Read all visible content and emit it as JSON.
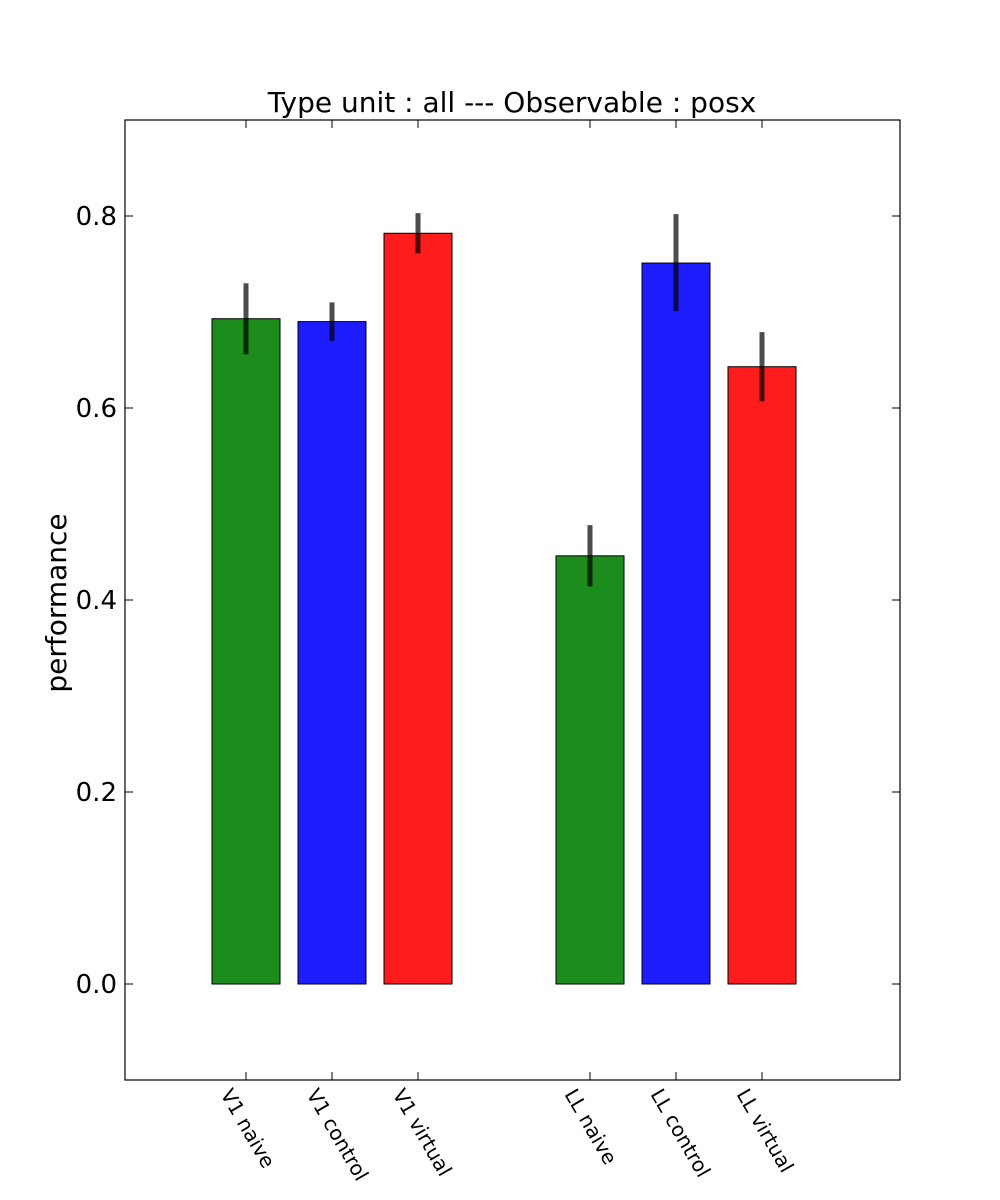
{
  "chart_data": {
    "type": "bar",
    "title": "Type unit : all --- Observable : posx",
    "xlabel": "",
    "ylabel": "performance",
    "ylim": [
      -0.1,
      0.9
    ],
    "yticks": [
      0.0,
      0.2,
      0.4,
      0.6,
      0.8
    ],
    "ytick_labels": [
      "0.0",
      "0.2",
      "0.4",
      "0.6",
      "0.8"
    ],
    "grid": false,
    "categories": [
      "V1 naive",
      "V1 control",
      "V1 virtual",
      "LL naive",
      "LL control",
      "LL virtual"
    ],
    "values": [
      0.693,
      0.69,
      0.782,
      0.446,
      0.751,
      0.643
    ],
    "error_low": [
      0.656,
      0.67,
      0.761,
      0.414,
      0.701,
      0.607
    ],
    "error_high": [
      0.73,
      0.71,
      0.803,
      0.478,
      0.802,
      0.679
    ],
    "bar_colors": [
      "#1c8c1c",
      "#1c1cff",
      "#ff1c1c",
      "#1c8c1c",
      "#1c1cff",
      "#ff1c1c"
    ],
    "error_color": "#000000"
  }
}
